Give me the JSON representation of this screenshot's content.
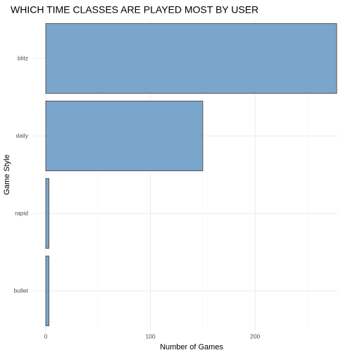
{
  "chart_data": {
    "type": "bar",
    "orientation": "horizontal",
    "title": "WHICH TIME CLASSES ARE PLAYED MOST BY USER",
    "xlabel": "Number of Games",
    "ylabel": "Game Style",
    "categories": [
      "blitz",
      "daily",
      "rapid",
      "bullet"
    ],
    "values": [
      278,
      150,
      3,
      3
    ],
    "xlim": [
      0,
      278
    ],
    "x_ticks": [
      0,
      100,
      200
    ],
    "x_tick_labels": [
      "0",
      "100",
      "200"
    ],
    "grid": true,
    "bar_color": "#7ba6cc",
    "bar_edge_color": "#555555"
  }
}
